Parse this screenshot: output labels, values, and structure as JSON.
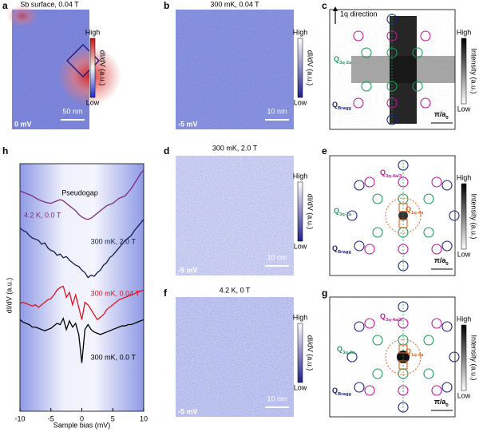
{
  "panels": {
    "a": {
      "letter": "a",
      "title": "Sb surface, 0.04 T",
      "bias": "0 mV",
      "scale": "50 nm",
      "high": "High",
      "low": "Low",
      "cbar_label": "dI/dV (a.u.)"
    },
    "b": {
      "letter": "b",
      "title": "300 mK, 0.04 T",
      "bias": "-5 mV",
      "scale": "10 nm",
      "high": "High",
      "low": "Low",
      "cbar_label": "dI/dV (a.u.)"
    },
    "c": {
      "letter": "c",
      "direction": "1q direction",
      "high": "High",
      "low": "Low",
      "cbar_label": "Intensity (a.u.)",
      "scale": {
        "main": "π/a",
        "sub": "0"
      },
      "labels": [
        {
          "q": "Q",
          "sub": "3q-2a",
          "color": "#1a9e5a"
        },
        {
          "q": "Q",
          "sub": "Bragg",
          "color": "#1a237e"
        }
      ]
    },
    "d": {
      "letter": "d",
      "title": "300 mK, 2.0 T",
      "bias": "-5 mV",
      "scale": "10 nm",
      "high": "High",
      "low": "Low",
      "cbar_label": "dI/dV (a.u.)"
    },
    "e": {
      "letter": "e",
      "high": "High",
      "low": "Low",
      "cbar_label": "Intensity (a.u.)",
      "scale": {
        "main": "π/a",
        "sub": "0"
      },
      "labels": [
        {
          "q": "Q",
          "sub": "3q-4a/3",
          "color": "#c0159b"
        },
        {
          "q": "Q",
          "sub": "3q-2a",
          "color": "#1a9e5a"
        },
        {
          "q": "Q",
          "sub": "1q-4a",
          "color": "#e06020"
        },
        {
          "q": "Q",
          "sub": "Bragg",
          "color": "#1a237e"
        }
      ]
    },
    "f": {
      "letter": "f",
      "title": "4.2 K, 0 T",
      "bias": "-5 mV",
      "scale": "10 nm",
      "high": "High",
      "low": "Low",
      "cbar_label": "dI/dV (a.u.)"
    },
    "g": {
      "letter": "g",
      "high": "High",
      "low": "Low",
      "cbar_label": "Intensity (a.u.)",
      "scale": {
        "main": "π/a",
        "sub": "0"
      },
      "labels": [
        {
          "q": "Q",
          "sub": "3q-4a/3",
          "color": "#c0159b"
        },
        {
          "q": "Q",
          "sub": "3q-2a",
          "color": "#1a9e5a"
        },
        {
          "q": "Q",
          "sub": "1q-4a",
          "color": "#e06020"
        },
        {
          "q": "Q",
          "sub": "Bragg",
          "color": "#1a237e"
        }
      ]
    },
    "h": {
      "letter": "h"
    }
  },
  "chart_data": {
    "type": "line",
    "x_label": "Sample bias (mV)",
    "y_label": "dI/dV (a.u.)",
    "annotation": "Pseudogap",
    "xlim": [
      -10,
      10
    ],
    "xticks": [
      -10,
      -5,
      0,
      5,
      10
    ],
    "ylim": [
      0,
      10
    ],
    "x": [
      -10,
      -9.5,
      -9,
      -8.5,
      -8,
      -7.5,
      -7,
      -6.5,
      -6,
      -5.5,
      -5,
      -4.5,
      -4,
      -3.5,
      -3,
      -2.5,
      -2,
      -1.5,
      -1,
      -0.5,
      0,
      0.5,
      1,
      1.5,
      2,
      2.5,
      3,
      3.5,
      4,
      4.5,
      5,
      5.5,
      6,
      6.5,
      7,
      7.5,
      8,
      8.5,
      9,
      9.5,
      10
    ],
    "series": [
      {
        "name": "4.2 K, 0.0 T",
        "color": "#7b2d7e",
        "values": [
          8.9,
          8.85,
          8.8,
          8.75,
          8.7,
          8.62,
          8.55,
          8.5,
          8.45,
          8.42,
          8.4,
          8.45,
          8.5,
          8.55,
          8.5,
          8.4,
          8.3,
          8.2,
          8.1,
          7.95,
          7.85,
          7.78,
          7.75,
          7.8,
          7.9,
          8.0,
          8.1,
          8.2,
          8.3,
          8.35,
          8.4,
          8.5,
          8.6,
          8.65,
          8.7,
          8.85,
          9.0,
          9.2,
          9.4,
          9.6,
          9.75
        ]
      },
      {
        "name": "300 mK, 2.0 T",
        "color": "#0f1f4a",
        "values": [
          7.4,
          7.3,
          7.25,
          7.1,
          7.0,
          6.95,
          6.9,
          6.75,
          6.8,
          6.6,
          6.5,
          6.45,
          6.3,
          6.35,
          6.2,
          6.25,
          6.1,
          6.0,
          5.9,
          5.85,
          5.7,
          5.6,
          5.4,
          5.5,
          5.45,
          5.6,
          5.7,
          5.9,
          6.0,
          6.2,
          6.3,
          6.45,
          6.6,
          6.75,
          6.9,
          7.0,
          7.1,
          7.3,
          7.45,
          7.6,
          7.75
        ]
      },
      {
        "name": "300 mK, 0.04 T",
        "color": "#e0141e",
        "values": [
          4.35,
          4.4,
          4.35,
          4.3,
          4.25,
          4.3,
          4.2,
          4.3,
          4.4,
          4.5,
          4.55,
          4.7,
          4.9,
          5.0,
          5.05,
          4.6,
          4.8,
          4.3,
          4.7,
          4.2,
          3.7,
          4.4,
          4.3,
          4.1,
          3.9,
          3.7,
          3.8,
          3.9,
          4.1,
          4.2,
          4.3,
          4.4,
          4.5,
          4.55,
          4.6,
          4.65,
          4.7,
          4.75,
          4.8,
          4.85,
          4.9
        ]
      },
      {
        "name": "300 mK, 0.0 T",
        "color": "#000000",
        "values": [
          3.7,
          3.6,
          3.55,
          3.5,
          3.4,
          3.4,
          3.35,
          3.3,
          3.25,
          3.3,
          3.35,
          3.45,
          3.55,
          3.5,
          3.75,
          3.3,
          3.65,
          3.4,
          3.55,
          3.1,
          1.95,
          3.3,
          3.5,
          3.3,
          3.2,
          3.15,
          3.1,
          3.15,
          3.2,
          3.25,
          3.3,
          3.35,
          3.4,
          3.45,
          3.45,
          3.5,
          3.5,
          3.55,
          3.6,
          3.65,
          3.7
        ]
      }
    ]
  }
}
